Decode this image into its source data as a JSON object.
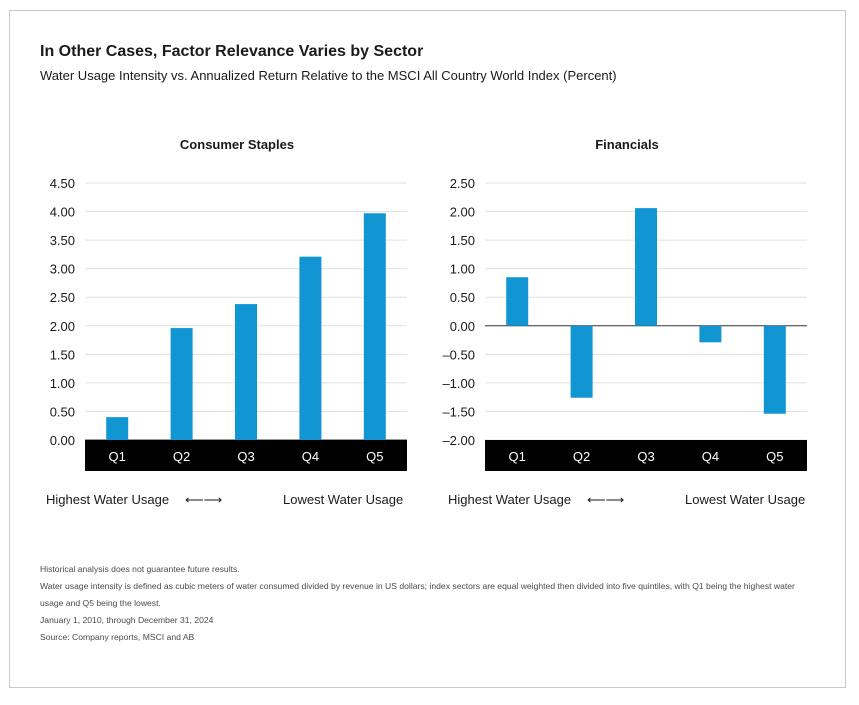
{
  "title": "In Other Cases, Factor Relevance Varies by Sector",
  "subtitle": "Water Usage Intensity vs. Annualized Return Relative to the MSCI All Country World Index (Percent)",
  "axis_left_label": "Highest Water Usage",
  "axis_right_label": "Lowest Water Usage",
  "arrow_glyph": "⟵⟶",
  "bar_color": "#1196d3",
  "band_color": "#000000",
  "chart_data": [
    {
      "type": "bar",
      "title": "Consumer Staples",
      "categories": [
        "Q1",
        "Q2",
        "Q3",
        "Q4",
        "Q5"
      ],
      "values": [
        0.4,
        1.96,
        2.38,
        3.21,
        3.97
      ],
      "ylim": [
        0,
        4.5
      ],
      "yticks": [
        "4.50",
        "4.00",
        "3.50",
        "3.00",
        "2.50",
        "2.00",
        "1.50",
        "1.00",
        "0.50",
        "0.00"
      ],
      "ytick_values": [
        4.5,
        4.0,
        3.5,
        3.0,
        2.5,
        2.0,
        1.5,
        1.0,
        0.5,
        0.0
      ],
      "grid": true
    },
    {
      "type": "bar",
      "title": "Financials",
      "categories": [
        "Q1",
        "Q2",
        "Q3",
        "Q4",
        "Q5"
      ],
      "values": [
        0.85,
        -1.26,
        2.06,
        -0.29,
        -1.54
      ],
      "ylim": [
        -2.0,
        2.5
      ],
      "yticks": [
        "2.50",
        "2.00",
        "1.50",
        "1.00",
        "0.50",
        "0.00",
        "–0.50",
        "–1.00",
        "–1.50",
        "–2.00"
      ],
      "ytick_values": [
        2.5,
        2.0,
        1.5,
        1.0,
        0.5,
        0.0,
        -0.5,
        -1.0,
        -1.5,
        -2.0
      ],
      "grid": true
    }
  ],
  "notes": [
    "Historical analysis does not guarantee future results.",
    "Water usage intensity is defined as cubic meters of water consumed divided by revenue in US dollars; index sectors are equal weighted then divided into five quintiles, with Q1 being the highest water usage and Q5 being the lowest.",
    "January 1, 2010, through December 31, 2024",
    "Source: Company reports, MSCI and AB"
  ]
}
